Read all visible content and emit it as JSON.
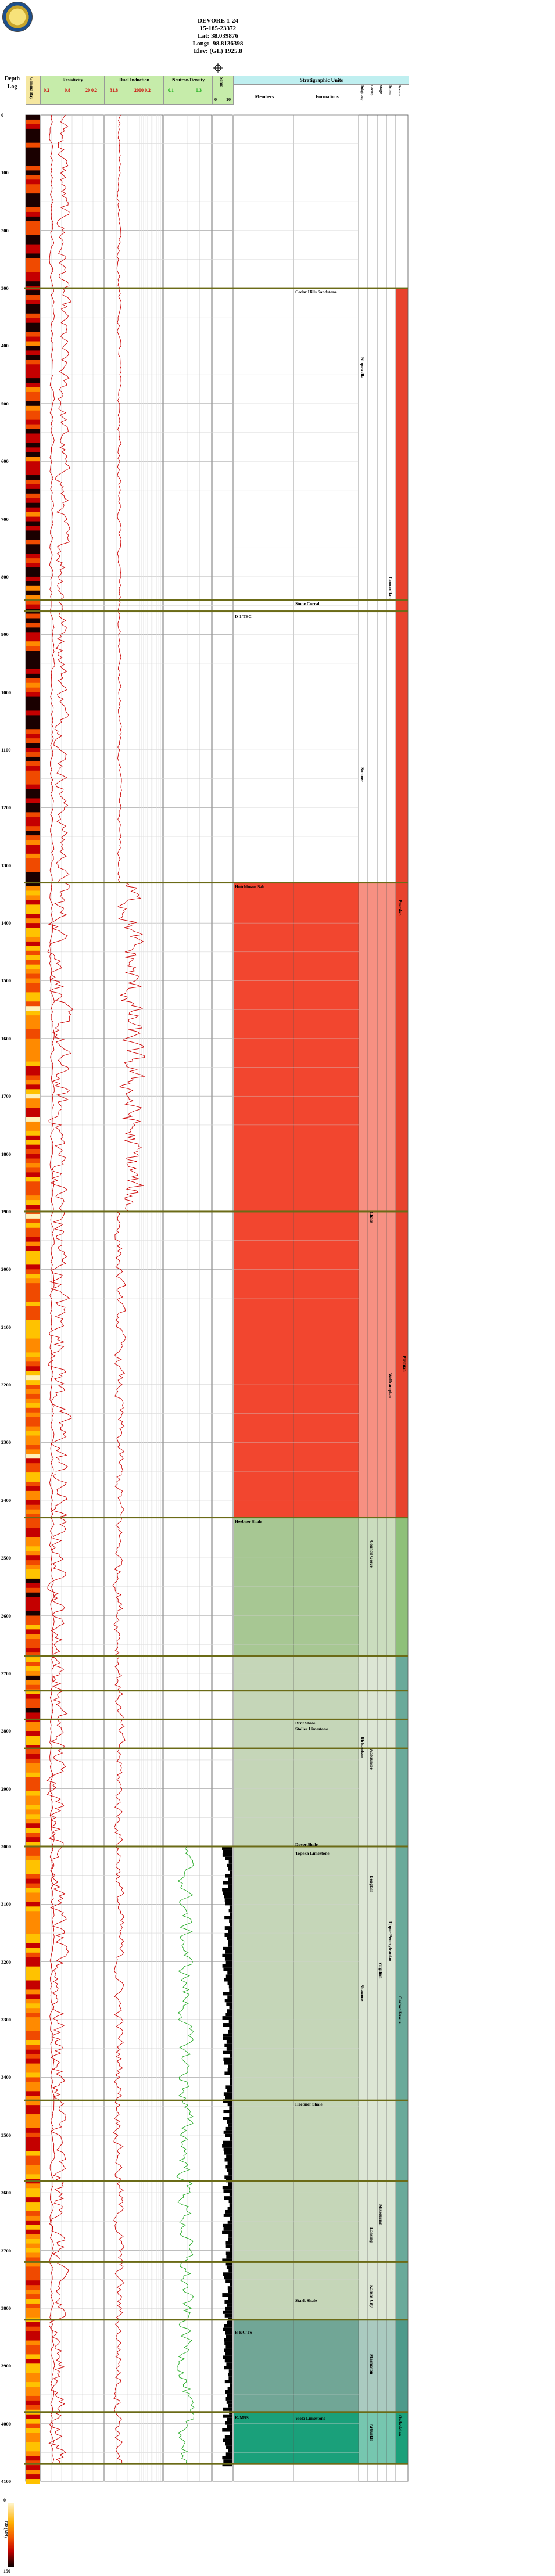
{
  "well": {
    "name": "DEVORE 1-24",
    "api": "15-185-23372",
    "lat": "Lat: 38.039876",
    "long": "Long: -98.8136398",
    "elev": "Elev: (GL) 1925.8"
  },
  "headers": {
    "depth": "Depth",
    "log": "Log",
    "gamma_ray": "Gamma Ray",
    "resistivity": "Resistivity",
    "res_scale": [
      "0.2",
      "0.8",
      "20 0.2"
    ],
    "ind_title": "Dual Induction",
    "ind_scale": [
      "31.8",
      "2000 0.2"
    ],
    "neut_title": "Neutron/Density",
    "neut_scale": [
      "0.1",
      "0.3"
    ],
    "sonic": "Sonic",
    "sonic_scale": [
      "0",
      "10"
    ],
    "strat_units": "Stratigraphic Units",
    "members": "Members",
    "formations": "Formations",
    "subgroup": "Subgroup",
    "group": "Group",
    "stage": "Stage",
    "series": "Series",
    "system": "System"
  },
  "depth_labels": [
    "0",
    "100",
    "200",
    "300",
    "400",
    "500",
    "600",
    "700",
    "800",
    "900",
    "1000",
    "1100",
    "1200",
    "1300",
    "1400",
    "1500",
    "1600",
    "1700",
    "1800",
    "1900",
    "2000",
    "2100",
    "2200",
    "2300",
    "2400",
    "2500",
    "2600",
    "2700",
    "2800",
    "2900",
    "3000",
    "3100",
    "3200",
    "3300",
    "3400",
    "3500",
    "3600",
    "3700",
    "3800",
    "3900",
    "4000",
    "4100"
  ],
  "depth_range": [
    0,
    4100
  ],
  "members": [
    {
      "name": "Cedar Hills Sandstone",
      "depth": 300,
      "col": "formation"
    },
    {
      "name": "Stone Corral",
      "depth": 840,
      "col": "formation"
    },
    {
      "name": "D-1 TEC",
      "depth": 862,
      "col": "member"
    },
    {
      "name": "Hutchinson Salt",
      "depth": 1330,
      "col": "member"
    },
    {
      "name": "Heebner Shale",
      "depth": 2430,
      "col": "member"
    },
    {
      "name": "Brnt Shale",
      "depth": 2780,
      "col": "formation"
    },
    {
      "name": "Stoller Limestone",
      "depth": 2790,
      "col": "formation"
    },
    {
      "name": "Dover Shale",
      "depth": 2990,
      "col": "formation"
    },
    {
      "name": "Topeka Limestone",
      "depth": 3005,
      "col": "formation"
    },
    {
      "name": "Heebner Shale",
      "depth": 3440,
      "col": "formation"
    },
    {
      "name": "Stark Shale",
      "depth": 3780,
      "col": "formation"
    },
    {
      "name": "B-KC TS",
      "depth": 3835,
      "col": "member"
    },
    {
      "name": "K-MSS",
      "depth": 3983,
      "col": "member"
    },
    {
      "name": "Viola Limestone",
      "depth": 3984,
      "col": "formation"
    }
  ],
  "vertical_labels": [
    {
      "text": "Nippewalla",
      "col": "subgroup",
      "depth": 420
    },
    {
      "text": "Leonardian",
      "col": "series",
      "depth": 800
    },
    {
      "text": "Sumner",
      "col": "subgroup",
      "depth": 1130
    },
    {
      "text": "Permian",
      "col": "system",
      "depth": 1360
    },
    {
      "text": "Chase",
      "col": "group",
      "depth": 1900
    },
    {
      "text": "Wolfcampian",
      "col": "series",
      "depth": 2180
    },
    {
      "text": "Permian",
      "col": "system2",
      "depth": 2150
    },
    {
      "text": "Council Grove",
      "col": "group",
      "depth": 2470
    },
    {
      "text": "Wabaunsee",
      "col": "group",
      "depth": 2830
    },
    {
      "text": "Richardson",
      "col": "subgroup",
      "depth": 2810
    },
    {
      "text": "Douglass",
      "col": "group",
      "depth": 3050
    },
    {
      "text": "Shawnee",
      "col": "subgroup",
      "depth": 3240
    },
    {
      "text": "Virgilian",
      "col": "stage",
      "depth": 3200
    },
    {
      "text": "Upper Pennsylvanian",
      "col": "series",
      "depth": 3130
    },
    {
      "text": "Carboniferous",
      "col": "system",
      "depth": 3260
    },
    {
      "text": "Missourian",
      "col": "stage",
      "depth": 3620
    },
    {
      "text": "Lansing",
      "col": "group",
      "depth": 3660
    },
    {
      "text": "Kansas City",
      "col": "group",
      "depth": 3760
    },
    {
      "text": "Marmaton",
      "col": "group",
      "depth": 3880
    },
    {
      "text": "Ordovician",
      "col": "system",
      "depth": 3985
    },
    {
      "text": "Arbuckle",
      "col": "group",
      "depth": 4000
    }
  ],
  "zones": [
    {
      "from": 300,
      "to": 1330,
      "member_color": "#ffffff",
      "system_color": "#e8422d"
    },
    {
      "from": 1330,
      "to": 2430,
      "member_color": "#f2462f",
      "system_color": "#e8422d"
    },
    {
      "from": 2430,
      "to": 2670,
      "member_color": "#a7c793",
      "system_color": "#8fc07a"
    },
    {
      "from": 2670,
      "to": 3820,
      "member_color": "#c5d6b8",
      "system_color": "#6aaa9a"
    },
    {
      "from": 3820,
      "to": 3980,
      "member_color": "#71a696",
      "system_color": "#4e9a8b"
    },
    {
      "from": 3980,
      "to": 4070,
      "member_color": "#1aa07a",
      "system_color": "#1aa07a"
    }
  ],
  "boundaries": [
    300,
    840,
    860,
    1330,
    1900,
    2430,
    2670,
    2730,
    2780,
    2830,
    3000,
    3440,
    3580,
    3720,
    3820,
    3980,
    4070
  ],
  "footer": {
    "gr_scale_top": "0",
    "gr_scale_bottom": "150",
    "gr_label": "GR (API)"
  },
  "colors": {
    "boundary": "#6b6b17",
    "permian_red": "#e8422d",
    "resistivity": "#cc0000",
    "neutron": "#22aa22",
    "header_cyan": "#bfeff0"
  }
}
